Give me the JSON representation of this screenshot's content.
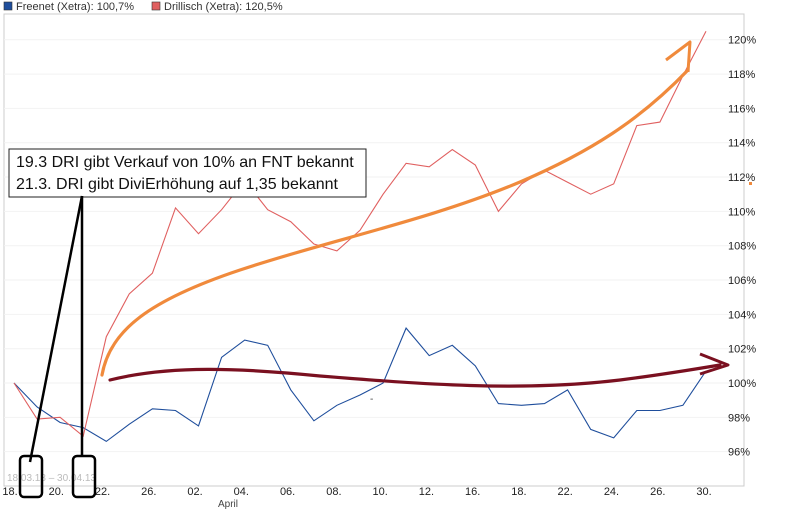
{
  "chart_data": {
    "type": "line",
    "legend": [
      {
        "name": "Freenet (Xetra): 100,7%",
        "color": "#1f4e9c"
      },
      {
        "name": "Drillisch (Xetra): 120,5%",
        "color": "#e06060"
      }
    ],
    "x_ticks": [
      "18.",
      "20.",
      "22.",
      "26.",
      "02.",
      "04.",
      "06.",
      "08.",
      "10.",
      "12.",
      "16.",
      "18.",
      "22.",
      "24.",
      "26.",
      "30."
    ],
    "x_month_label": "April",
    "y_ticks": [
      "96%",
      "98%",
      "100%",
      "102%",
      "104%",
      "106%",
      "108%",
      "110%",
      "112%",
      "114%",
      "116%",
      "118%",
      "120%"
    ],
    "ylim": [
      94,
      121.5
    ],
    "series": [
      {
        "name": "Freenet (Xetra)",
        "color": "#1f4e9c",
        "values": [
          100.0,
          98.6,
          97.7,
          97.4,
          96.6,
          97.6,
          98.5,
          98.4,
          97.5,
          101.5,
          102.5,
          102.2,
          99.6,
          97.8,
          98.7,
          99.3,
          100.0,
          103.2,
          101.6,
          102.2,
          101.0,
          98.8,
          98.7,
          98.8,
          99.6,
          97.3,
          96.8,
          98.4,
          98.4,
          98.7,
          100.7
        ]
      },
      {
        "name": "Drillisch (Xetra)",
        "color": "#e06060",
        "values": [
          100.0,
          97.9,
          98.0,
          96.9,
          102.7,
          105.2,
          106.4,
          110.2,
          108.7,
          110.1,
          111.8,
          110.1,
          109.4,
          108.1,
          107.7,
          108.9,
          111.0,
          112.8,
          112.6,
          113.6,
          112.7,
          110.0,
          111.6,
          112.4,
          111.7,
          111.0,
          111.6,
          115.0,
          115.2,
          117.9,
          120.5
        ]
      }
    ],
    "annotations": [
      "19.3 DRI gibt Verkauf von 10% an FNT bekannt",
      "21.3. DRI gibt DiviErhöhung auf 1,35 bekannt"
    ],
    "date_range": "18.03.13 – 30.04.13",
    "current_marker": "-"
  }
}
